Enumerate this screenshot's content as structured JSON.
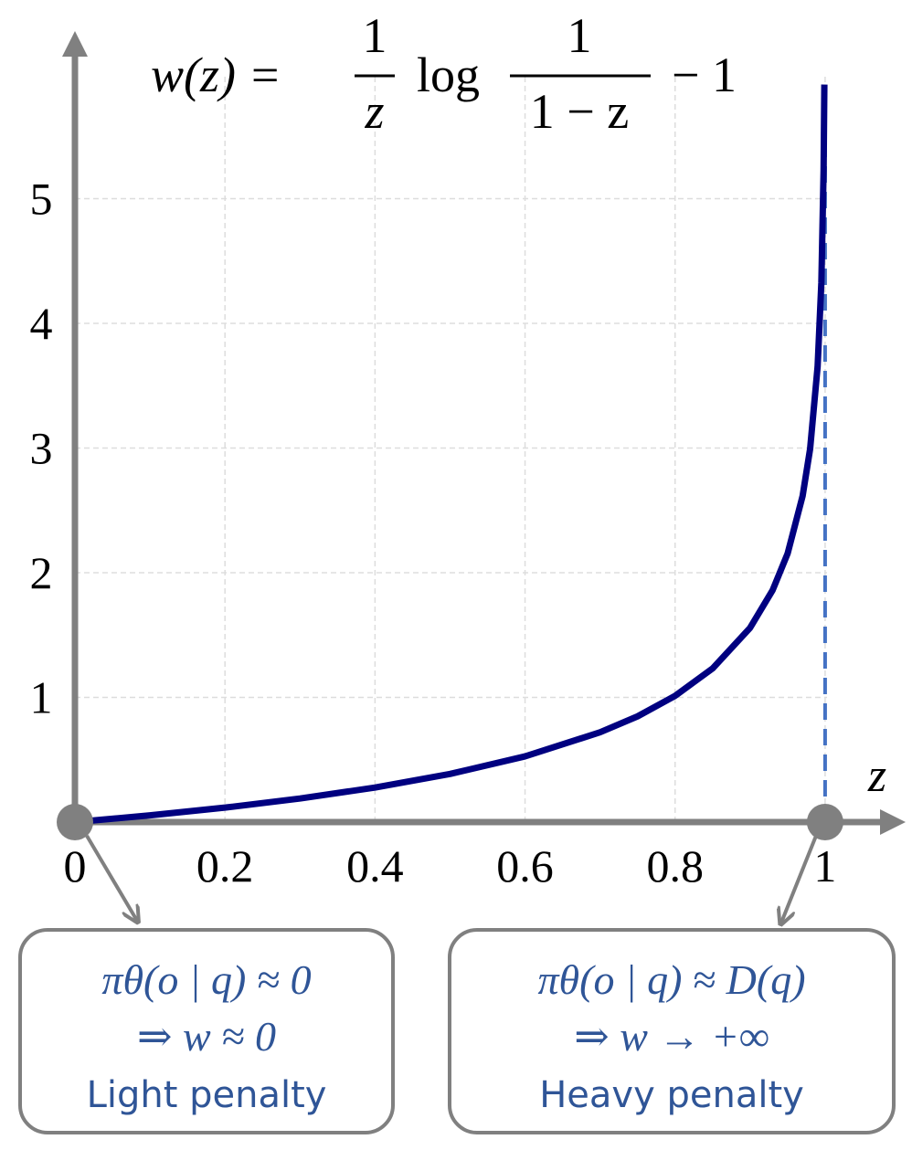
{
  "chart_data": {
    "type": "line",
    "formula": {
      "lhs": "w(z) =",
      "frac1_num": "1",
      "frac1_den": "z",
      "log": "log",
      "frac2_num": "1",
      "frac2_den": "1 − z",
      "tail": "− 1"
    },
    "x_label": "z",
    "x": [
      0,
      0.1,
      0.2,
      0.3,
      0.4,
      0.5,
      0.6,
      0.7,
      0.75,
      0.8,
      0.85,
      0.9,
      0.93,
      0.95,
      0.97,
      0.98,
      0.99,
      0.995,
      0.998,
      0.999
    ],
    "series": [
      {
        "color": "#000080",
        "values": [
          0,
          0.054,
          0.116,
          0.189,
          0.277,
          0.386,
          0.527,
          0.72,
          0.848,
          1.012,
          1.232,
          1.558,
          1.859,
          2.153,
          2.615,
          2.992,
          3.652,
          4.325,
          5.227,
          5.915
        ]
      }
    ],
    "asymptote": {
      "x": 1,
      "color": "#4472c4"
    },
    "points": [
      0,
      1
    ],
    "xlim": [
      0,
      1.1
    ],
    "ylim": [
      0,
      6.3
    ],
    "xticks": [
      0,
      0.2,
      0.4,
      0.6,
      0.8,
      1
    ],
    "yticks": [
      1,
      2,
      3,
      4,
      5
    ],
    "grid": true,
    "annotations": [
      {
        "lines": [
          "πθ(o | q) ≈ 0",
          "⇒   w ≈ 0",
          "Light penalty"
        ]
      },
      {
        "lines": [
          "πθ(o | q) ≈ D(q)",
          "⇒   w → +∞",
          "Heavy penalty"
        ]
      }
    ]
  }
}
